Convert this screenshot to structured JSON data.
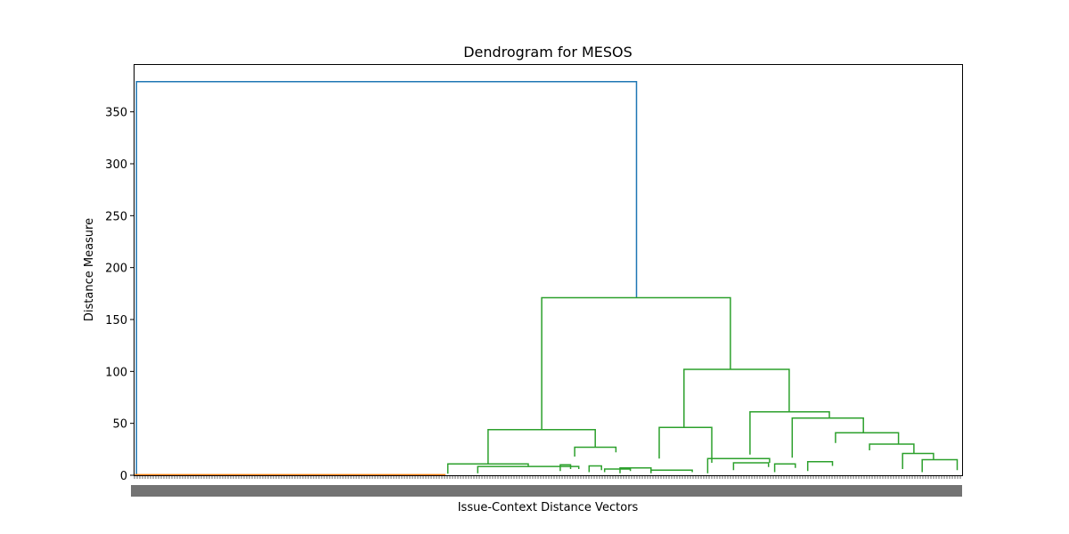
{
  "chart_data": {
    "type": "dendrogram",
    "title": "Dendrogram for MESOS",
    "xlabel": "Issue-Context Distance Vectors",
    "ylabel": "Distance Measure",
    "ylim": [
      0,
      396
    ],
    "yticks": [
      0,
      50,
      100,
      150,
      200,
      250,
      300,
      350
    ],
    "leaf_range": [
      0,
      800
    ],
    "grid": false,
    "colors": {
      "root": "#1f77b4",
      "cluster_a": "#ff7f0e",
      "cluster_b": "#2ca02c",
      "axes": "#000000"
    },
    "links": [
      {
        "x": [
          1,
          1,
          486,
          486
        ],
        "y": [
          0.5,
          379,
          379,
          171
        ],
        "color": "#1f77b4"
      },
      {
        "x": [
          0,
          0,
          300,
          300
        ],
        "y": [
          0,
          0.5,
          0.5,
          0
        ],
        "color": "#ff7f0e"
      },
      {
        "x": [
          394,
          394,
          577,
          577
        ],
        "y": [
          44,
          171,
          171,
          102
        ],
        "color": "#2ca02c"
      },
      {
        "x": [
          342,
          342,
          446,
          446
        ],
        "y": [
          11,
          44,
          44,
          27
        ],
        "color": "#2ca02c"
      },
      {
        "x": [
          303,
          303,
          381,
          381
        ],
        "y": [
          1.5,
          11,
          11,
          8.5
        ],
        "color": "#2ca02c"
      },
      {
        "x": [
          332,
          332,
          430,
          430
        ],
        "y": [
          2,
          8.5,
          8.5,
          6
        ],
        "color": "#2ca02c"
      },
      {
        "x": [
          426,
          426,
          466,
          466
        ],
        "y": [
          18,
          27,
          27,
          22
        ],
        "color": "#2ca02c"
      },
      {
        "x": [
          532,
          532,
          634,
          634
        ],
        "y": [
          46,
          102,
          102,
          61
        ],
        "color": "#2ca02c"
      },
      {
        "x": [
          508,
          508,
          559,
          559
        ],
        "y": [
          16,
          46,
          46,
          12
        ],
        "color": "#2ca02c"
      },
      {
        "x": [
          596,
          596,
          673,
          673
        ],
        "y": [
          20,
          61,
          61,
          55
        ],
        "color": "#2ca02c"
      },
      {
        "x": [
          637,
          637,
          706,
          706
        ],
        "y": [
          17,
          55,
          55,
          41
        ],
        "color": "#2ca02c"
      },
      {
        "x": [
          679,
          679,
          740,
          740
        ],
        "y": [
          31,
          41,
          41,
          30
        ],
        "color": "#2ca02c"
      },
      {
        "x": [
          712,
          712,
          755,
          755
        ],
        "y": [
          24,
          30,
          30,
          21
        ],
        "color": "#2ca02c"
      },
      {
        "x": [
          744,
          744,
          774,
          774
        ],
        "y": [
          6,
          21,
          21,
          15
        ],
        "color": "#2ca02c"
      },
      {
        "x": [
          763,
          763,
          797,
          797
        ],
        "y": [
          3,
          15,
          15,
          5
        ],
        "color": "#2ca02c"
      },
      {
        "x": [
          555,
          555,
          615,
          615
        ],
        "y": [
          2,
          16,
          16,
          12
        ],
        "color": "#2ca02c"
      },
      {
        "x": [
          580,
          580,
          614,
          614
        ],
        "y": [
          5,
          12,
          12,
          8
        ],
        "color": "#2ca02c"
      },
      {
        "x": [
          620,
          620,
          640,
          640
        ],
        "y": [
          3,
          11,
          11,
          7
        ],
        "color": "#2ca02c"
      },
      {
        "x": [
          652,
          652,
          676,
          676
        ],
        "y": [
          4,
          13,
          13,
          9
        ],
        "color": "#2ca02c"
      },
      {
        "x": [
          455,
          455,
          480,
          480
        ],
        "y": [
          3,
          6,
          6,
          4
        ],
        "color": "#2ca02c"
      },
      {
        "x": [
          470,
          470,
          500,
          500
        ],
        "y": [
          2,
          7,
          7,
          3
        ],
        "color": "#2ca02c"
      },
      {
        "x": [
          500,
          500,
          540,
          540
        ],
        "y": [
          2,
          5,
          5,
          3
        ],
        "color": "#2ca02c"
      },
      {
        "x": [
          412,
          412,
          422,
          422
        ],
        "y": [
          4,
          10,
          10,
          6
        ],
        "color": "#2ca02c"
      },
      {
        "x": [
          440,
          440,
          452,
          452
        ],
        "y": [
          3,
          9,
          9,
          5
        ],
        "color": "#2ca02c"
      }
    ]
  }
}
